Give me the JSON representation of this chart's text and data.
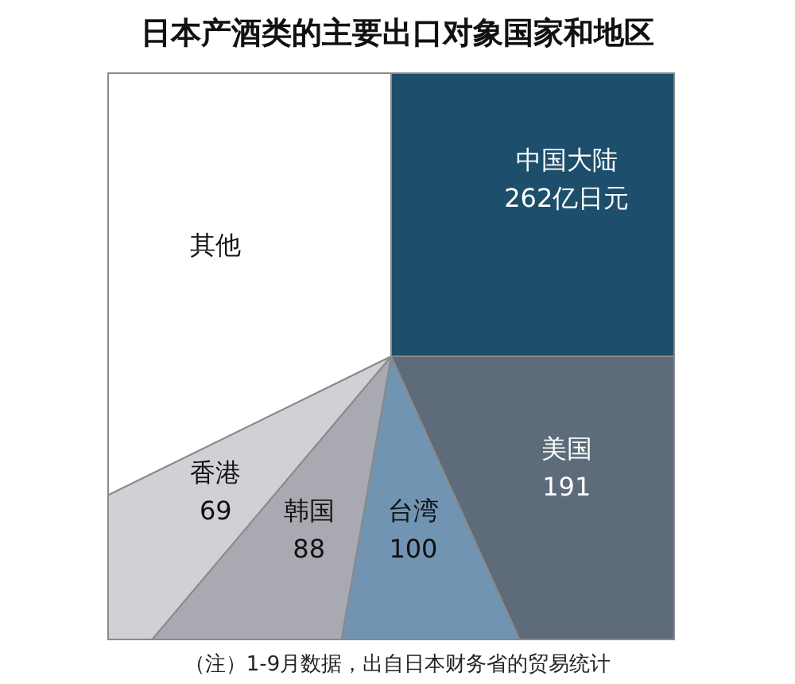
{
  "chart_data": {
    "type": "pie",
    "title": "日本产酒类的主要出口对象国家和地区",
    "categories": [
      "中国大陆",
      "美国",
      "台湾",
      "韩国",
      "香港",
      "其他"
    ],
    "values": [
      262,
      191,
      100,
      88,
      69,
      338
    ],
    "value_labels": [
      "262亿日元",
      "191",
      "100",
      "88",
      "69",
      null
    ],
    "colors": [
      "#1d4e6b",
      "#5d6b7b",
      "#7094b1",
      "#a9a9b1",
      "#d0d1d5",
      "#ffffff"
    ],
    "annotations": [
      "（注）1-9月数据，出自日本财务省的贸易统计"
    ]
  }
}
